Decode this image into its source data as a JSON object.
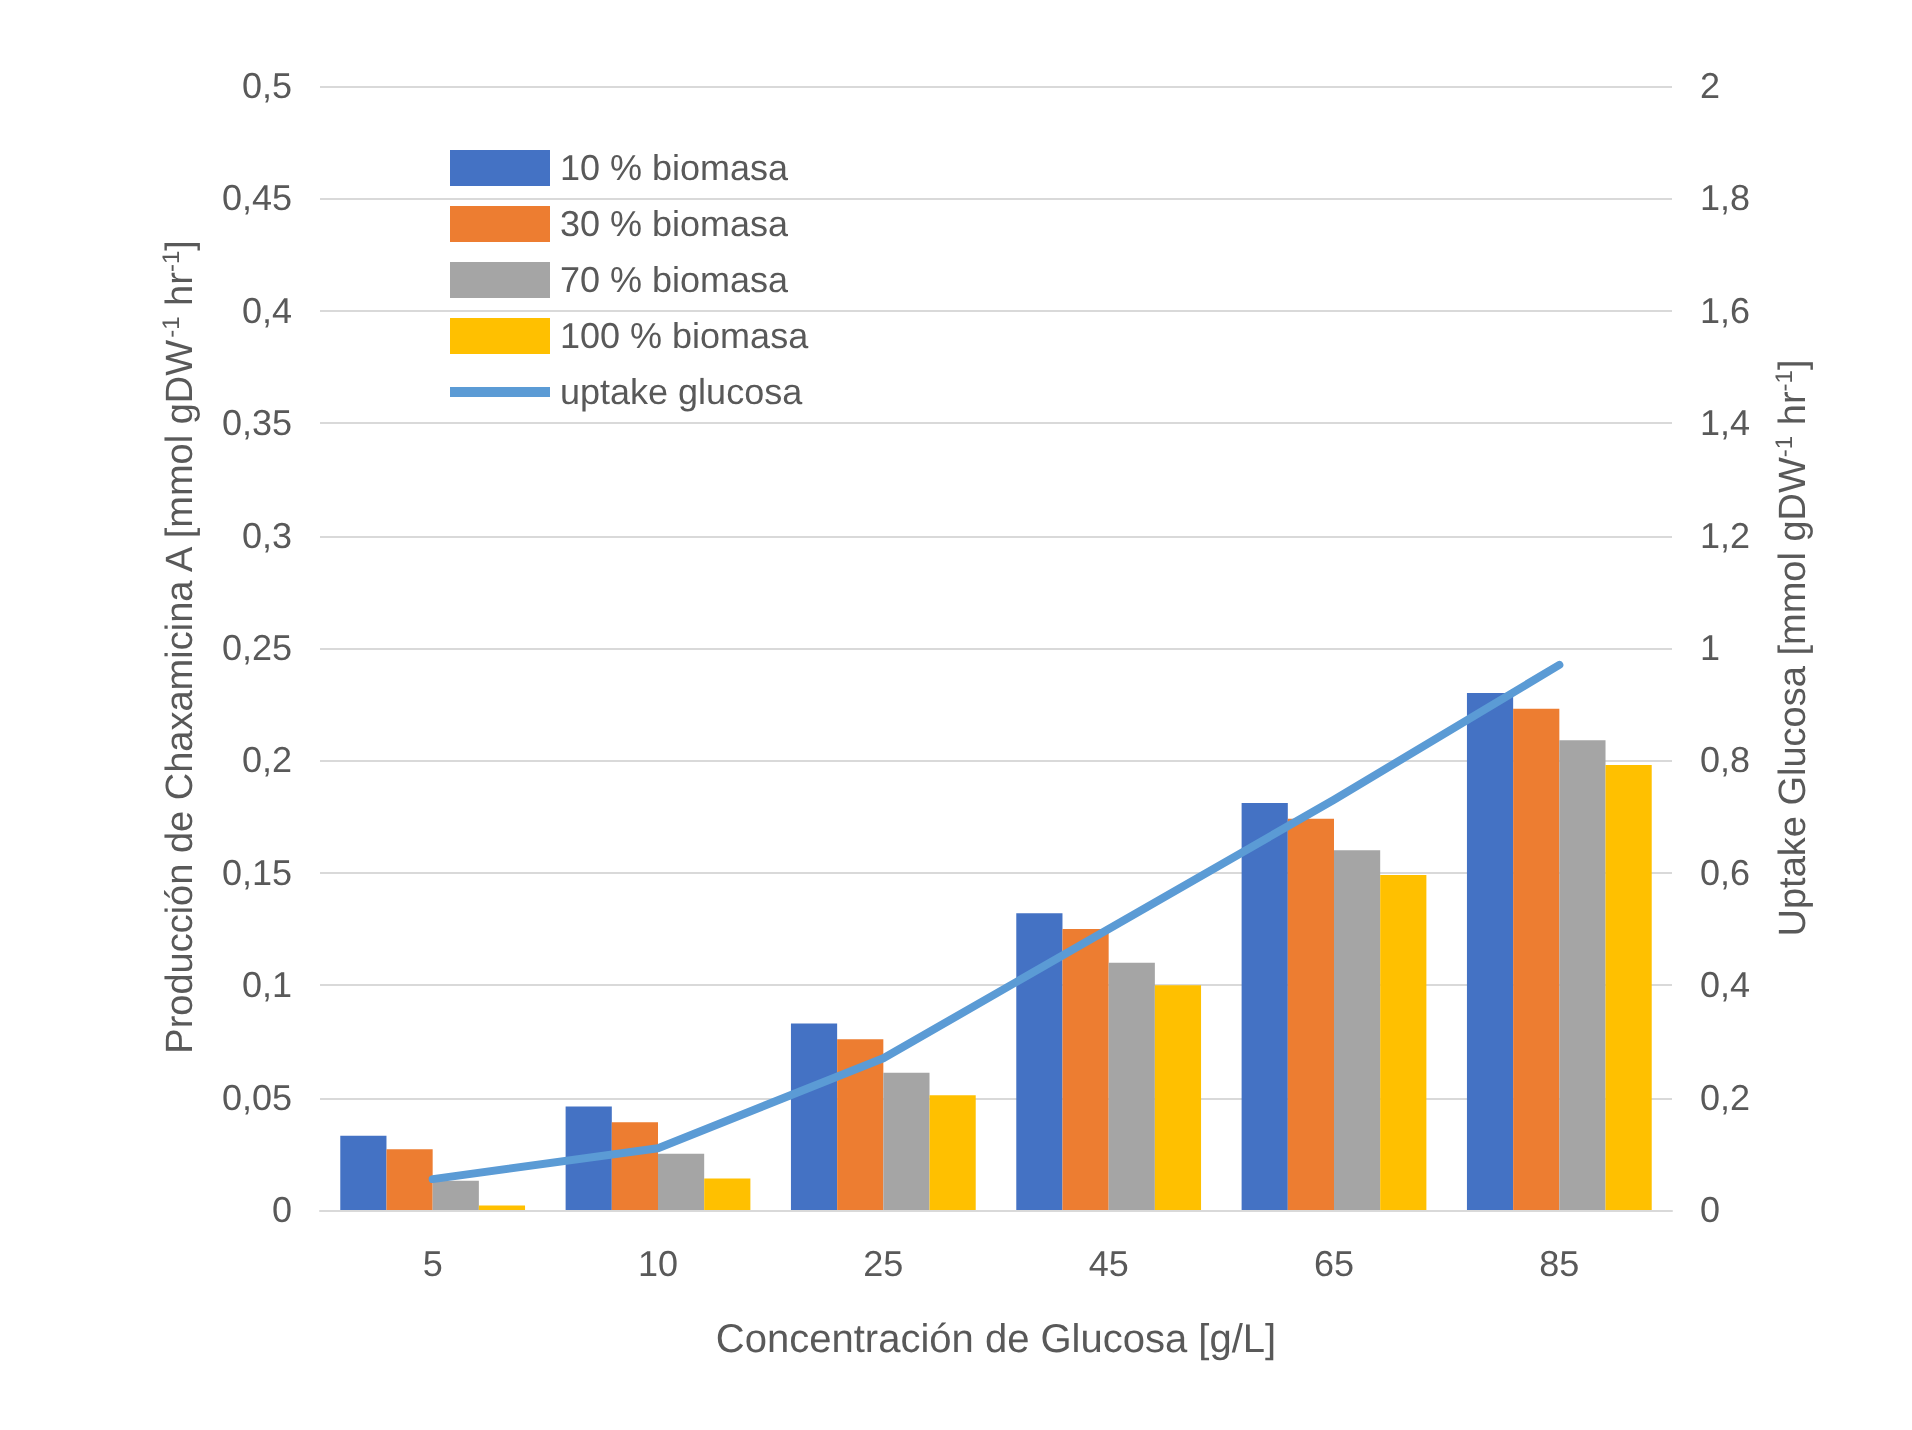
{
  "chart_data": {
    "type": "bar",
    "xlabel": "Concentración de Glucosa [g/L]",
    "ylabel": "Producción de Chaxamicina A [mmol gDW$^{-1}$ hr$^{-1}$]",
    "y2label": "Uptake Glucosa [mmol gDW$^{-1}$ hr$^{-1}$]",
    "categories": [
      "5",
      "10",
      "25",
      "45",
      "65",
      "85"
    ],
    "series": [
      {
        "name": "10 % biomasa",
        "color": "#4472c4",
        "values": [
          0.033,
          0.046,
          0.083,
          0.132,
          0.181,
          0.23
        ]
      },
      {
        "name": "30 % biomasa",
        "color": "#ed7d31",
        "values": [
          0.027,
          0.039,
          0.076,
          0.125,
          0.174,
          0.223
        ]
      },
      {
        "name": "70 % biomasa",
        "color": "#a5a5a5",
        "values": [
          0.013,
          0.025,
          0.061,
          0.11,
          0.16,
          0.209
        ]
      },
      {
        "name": "100 % biomasa",
        "color": "#ffc000",
        "values": [
          0.002,
          0.014,
          0.051,
          0.1,
          0.149,
          0.198
        ]
      },
      {
        "name": "uptake glucosa",
        "type": "line",
        "axis": "y2",
        "color": "#5b9bd5",
        "marker": "none",
        "values": [
          0.055,
          0.11,
          0.27,
          0.5,
          0.73,
          0.97
        ]
      }
    ],
    "ylim": [
      0,
      0.5
    ],
    "yticks": [
      0,
      {
        "value": 0.05,
        "label": "0,05"
      },
      {
        "value": 0.1,
        "label": "0,1"
      },
      {
        "value": 0.15,
        "label": "0,15"
      },
      {
        "value": 0.2,
        "label": "0,2"
      },
      {
        "value": 0.25,
        "label": "0,25"
      },
      {
        "value": 0.3,
        "label": "0,3"
      },
      {
        "value": 0.35,
        "label": "0,35"
      },
      {
        "value": 0.4,
        "label": "0,4"
      },
      {
        "value": 0.45,
        "label": "0,45"
      },
      {
        "value": 0.5,
        "label": "0,5"
      }
    ],
    "y2lim": [
      0,
      2
    ],
    "y2ticks": [
      0,
      {
        "value": 0.2,
        "label": "0,2"
      },
      {
        "value": 0.4,
        "label": "0,4"
      },
      {
        "value": 0.6,
        "label": "0,6"
      },
      {
        "value": 0.8,
        "label": "0,8"
      },
      1,
      {
        "value": 1.2,
        "label": "1,2"
      },
      {
        "value": 1.4,
        "label": "1,4"
      },
      {
        "value": 1.6,
        "label": "1,6"
      },
      {
        "value": 1.8,
        "label": "1,8"
      },
      2
    ],
    "grid": "y",
    "legend": "top left"
  }
}
